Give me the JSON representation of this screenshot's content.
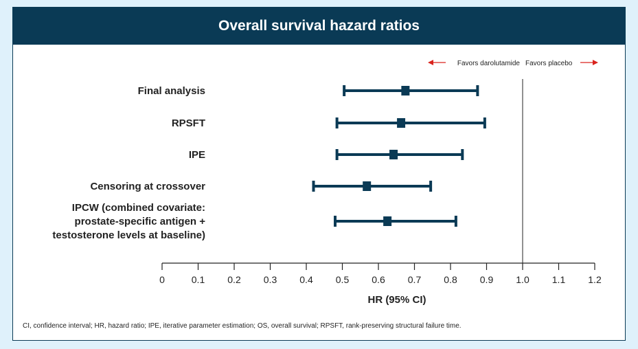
{
  "header": {
    "title": "Overall survival hazard ratios"
  },
  "chart_data": {
    "type": "forest",
    "title": "Overall survival hazard ratios",
    "xlabel": "HR (95% CI)",
    "xlim": [
      0,
      1.2
    ],
    "xticks": [
      0,
      0.1,
      0.2,
      0.3,
      0.4,
      0.5,
      0.6,
      0.7,
      0.8,
      0.9,
      1.0,
      1.1,
      1.2
    ],
    "xtick_labels": [
      "0",
      "0.1",
      "0.2",
      "0.3",
      "0.4",
      "0.5",
      "0.6",
      "0.7",
      "0.8",
      "0.9",
      "1.0",
      "1.1",
      "1.2"
    ],
    "reference_line": 1.0,
    "favors_left": "Favors darolutamide",
    "favors_right": "Favors placebo",
    "rows": [
      {
        "label": [
          "Final analysis"
        ],
        "hr": 0.675,
        "ci_low": 0.505,
        "ci_high": 0.875
      },
      {
        "label": [
          "RPSFT"
        ],
        "hr": 0.663,
        "ci_low": 0.485,
        "ci_high": 0.895
      },
      {
        "label": [
          "IPE"
        ],
        "hr": 0.642,
        "ci_low": 0.485,
        "ci_high": 0.833
      },
      {
        "label": [
          "Censoring at crossover"
        ],
        "hr": 0.568,
        "ci_low": 0.42,
        "ci_high": 0.745
      },
      {
        "label": [
          "IPCW (combined covariate:",
          "prostate-specific antigen +",
          "testosterone levels at baseline)"
        ],
        "hr": 0.625,
        "ci_low": 0.48,
        "ci_high": 0.815
      }
    ],
    "colors": {
      "marker": "#0a3a55",
      "arrow": "#d9231d",
      "axis": "#222222"
    }
  },
  "footnote": "CI, confidence interval; HR, hazard ratio; IPE, iterative parameter estimation; OS, overall survival; RPSFT, rank-preserving structural failure time."
}
